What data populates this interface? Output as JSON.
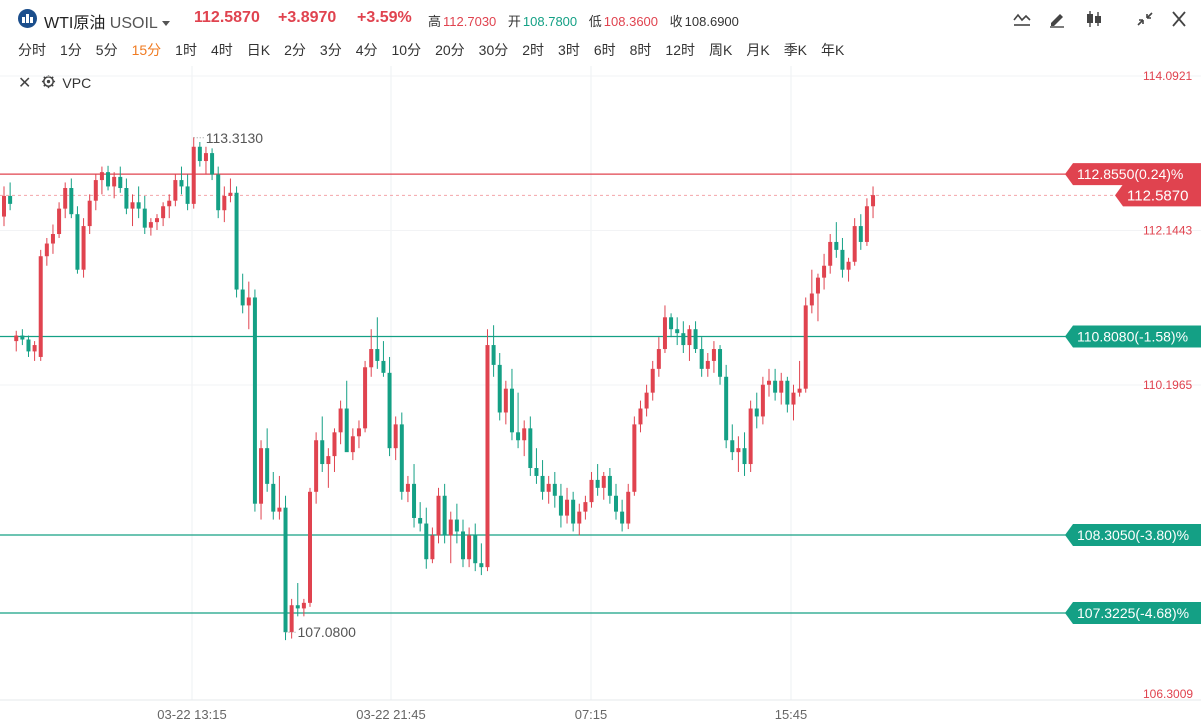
{
  "header": {
    "name": "WTI原油",
    "symbol": "USOIL",
    "price": "112.5870",
    "change": "+3.8970",
    "change_pct": "+3.59%",
    "high_label": "高",
    "high": "112.7030",
    "open_label": "开",
    "open": "108.7800",
    "low_label": "低",
    "low": "108.3600",
    "close_label": "收",
    "close": "108.6900"
  },
  "toolbar": {
    "icons": [
      "line-style-icon",
      "draw-pen-icon",
      "candle-type-icon",
      "collapse-icon",
      "close-icon"
    ]
  },
  "periods": [
    "分时",
    "1分",
    "5分",
    "15分",
    "1时",
    "4时",
    "日K",
    "2分",
    "3分",
    "4分",
    "10分",
    "20分",
    "30分",
    "2时",
    "3时",
    "6时",
    "8时",
    "12时",
    "周K",
    "月K",
    "季K",
    "年K"
  ],
  "active_period": "15分",
  "indicator": {
    "label": "VPC"
  },
  "colors": {
    "up": "#e0434f",
    "down": "#14a085",
    "accent": "#f07b22"
  },
  "chart_data": {
    "type": "candlestick",
    "y_axis_labels": [
      "114.0921",
      "112.1443",
      "110.1965",
      "106.3009"
    ],
    "ylim": [
      106.3009,
      114.0921
    ],
    "x_tick_labels": [
      "03-22 13:15",
      "03-22 21:45",
      "07:15",
      "15:45"
    ],
    "price_lines": [
      {
        "value": 112.855,
        "label": "112.8550(0.24)%",
        "color": "#e0434f"
      },
      {
        "value": 112.587,
        "label": "112.5870",
        "color": "#e0434f",
        "dashed": true
      },
      {
        "value": 110.808,
        "label": "110.8080(-1.58)%",
        "color": "#14a085"
      },
      {
        "value": 108.305,
        "label": "108.3050(-3.80)%",
        "color": "#14a085"
      },
      {
        "value": 107.3225,
        "label": "107.3225(-4.68)%",
        "color": "#14a085"
      }
    ],
    "annotations": [
      {
        "label": "113.3130",
        "value": 113.313
      },
      {
        "label": "107.0800",
        "value": 107.08
      }
    ],
    "candles_ohlc": [
      [
        112.32,
        112.7,
        112.2,
        112.58
      ],
      [
        112.58,
        112.75,
        112.4,
        112.48
      ],
      [
        110.75,
        110.88,
        110.62,
        110.82
      ],
      [
        110.82,
        110.9,
        110.7,
        110.77
      ],
      [
        110.77,
        110.82,
        110.55,
        110.62
      ],
      [
        110.62,
        110.75,
        110.5,
        110.7
      ],
      [
        110.55,
        111.9,
        110.5,
        111.82
      ],
      [
        111.82,
        112.05,
        111.7,
        111.98
      ],
      [
        111.98,
        112.22,
        111.85,
        112.1
      ],
      [
        112.1,
        112.5,
        112.05,
        112.42
      ],
      [
        112.42,
        112.75,
        112.3,
        112.68
      ],
      [
        112.68,
        112.8,
        112.3,
        112.35
      ],
      [
        112.35,
        112.45,
        111.6,
        111.65
      ],
      [
        111.65,
        112.3,
        111.55,
        112.2
      ],
      [
        112.2,
        112.6,
        112.1,
        112.52
      ],
      [
        112.52,
        112.85,
        112.4,
        112.78
      ],
      [
        112.78,
        112.95,
        112.6,
        112.88
      ],
      [
        112.88,
        112.96,
        112.65,
        112.7
      ],
      [
        112.7,
        112.88,
        112.55,
        112.82
      ],
      [
        112.82,
        112.95,
        112.62,
        112.68
      ],
      [
        112.68,
        112.8,
        112.35,
        112.42
      ],
      [
        112.42,
        112.6,
        112.2,
        112.5
      ],
      [
        112.5,
        112.7,
        112.3,
        112.42
      ],
      [
        112.42,
        112.58,
        112.1,
        112.18
      ],
      [
        112.18,
        112.3,
        112.08,
        112.25
      ],
      [
        112.25,
        112.35,
        112.15,
        112.3
      ],
      [
        112.3,
        112.5,
        112.2,
        112.45
      ],
      [
        112.45,
        112.6,
        112.3,
        112.52
      ],
      [
        112.52,
        112.85,
        112.45,
        112.78
      ],
      [
        112.78,
        112.95,
        112.6,
        112.7
      ],
      [
        112.7,
        112.85,
        112.4,
        112.48
      ],
      [
        112.48,
        113.32,
        112.42,
        113.2
      ],
      [
        113.2,
        113.26,
        112.95,
        113.02
      ],
      [
        113.02,
        113.2,
        112.85,
        113.12
      ],
      [
        113.12,
        113.18,
        112.78,
        112.85
      ],
      [
        112.85,
        112.95,
        112.3,
        112.4
      ],
      [
        112.4,
        112.7,
        112.25,
        112.58
      ],
      [
        112.58,
        112.8,
        112.5,
        112.62
      ],
      [
        112.62,
        112.7,
        111.3,
        111.4
      ],
      [
        111.4,
        111.6,
        111.1,
        111.2
      ],
      [
        111.2,
        111.5,
        110.9,
        111.3
      ],
      [
        111.3,
        111.4,
        108.6,
        108.7
      ],
      [
        108.7,
        109.5,
        108.5,
        109.4
      ],
      [
        109.4,
        109.65,
        108.85,
        108.95
      ],
      [
        108.95,
        109.1,
        108.5,
        108.6
      ],
      [
        108.6,
        109.05,
        108.5,
        108.65
      ],
      [
        108.65,
        108.8,
        106.98,
        107.08
      ],
      [
        107.08,
        107.5,
        107.0,
        107.42
      ],
      [
        107.42,
        107.7,
        107.28,
        107.38
      ],
      [
        107.38,
        107.5,
        107.28,
        107.45
      ],
      [
        107.45,
        108.9,
        107.4,
        108.85
      ],
      [
        108.85,
        109.6,
        108.7,
        109.5
      ],
      [
        109.5,
        109.8,
        109.1,
        109.2
      ],
      [
        109.2,
        109.4,
        108.9,
        109.3
      ],
      [
        109.3,
        109.65,
        109.1,
        109.6
      ],
      [
        109.6,
        110.0,
        109.45,
        109.9
      ],
      [
        109.9,
        110.25,
        109.7,
        109.35
      ],
      [
        109.35,
        109.65,
        109.25,
        109.55
      ],
      [
        109.55,
        109.75,
        109.4,
        109.65
      ],
      [
        109.65,
        110.5,
        109.6,
        110.42
      ],
      [
        110.42,
        110.9,
        110.3,
        110.65
      ],
      [
        110.65,
        111.05,
        110.4,
        110.5
      ],
      [
        110.5,
        110.75,
        110.3,
        110.35
      ],
      [
        110.35,
        110.55,
        109.3,
        109.4
      ],
      [
        109.4,
        109.8,
        109.25,
        109.7
      ],
      [
        109.7,
        109.85,
        108.75,
        108.85
      ],
      [
        108.85,
        109.05,
        108.72,
        108.95
      ],
      [
        108.95,
        109.2,
        108.4,
        108.52
      ],
      [
        108.52,
        108.72,
        108.35,
        108.45
      ],
      [
        108.45,
        108.65,
        107.88,
        108.0
      ],
      [
        108.0,
        108.4,
        107.95,
        108.3
      ],
      [
        108.3,
        108.9,
        108.2,
        108.8
      ],
      [
        108.8,
        108.95,
        108.2,
        108.3
      ],
      [
        108.3,
        108.6,
        107.95,
        108.5
      ],
      [
        108.5,
        108.7,
        108.2,
        108.35
      ],
      [
        108.35,
        108.5,
        107.9,
        108.0
      ],
      [
        108.0,
        108.4,
        107.9,
        108.3
      ],
      [
        108.3,
        108.45,
        107.85,
        107.95
      ],
      [
        107.95,
        108.2,
        107.8,
        107.9
      ],
      [
        107.9,
        110.9,
        107.85,
        110.7
      ],
      [
        110.7,
        110.95,
        110.3,
        110.45
      ],
      [
        110.45,
        110.6,
        109.75,
        109.85
      ],
      [
        109.85,
        110.25,
        109.7,
        110.15
      ],
      [
        110.15,
        110.4,
        109.5,
        109.6
      ],
      [
        109.6,
        110.1,
        109.4,
        109.5
      ],
      [
        109.5,
        109.75,
        109.3,
        109.65
      ],
      [
        109.65,
        109.8,
        109.05,
        109.15
      ],
      [
        109.15,
        109.4,
        108.95,
        109.05
      ],
      [
        109.05,
        109.25,
        108.75,
        108.85
      ],
      [
        108.85,
        109.05,
        108.7,
        108.95
      ],
      [
        108.95,
        109.1,
        108.65,
        108.8
      ],
      [
        108.8,
        108.95,
        108.4,
        108.55
      ],
      [
        108.55,
        108.9,
        108.45,
        108.75
      ],
      [
        108.75,
        108.85,
        108.35,
        108.45
      ],
      [
        108.45,
        108.7,
        108.3,
        108.6
      ],
      [
        108.6,
        108.8,
        108.5,
        108.72
      ],
      [
        108.72,
        109.1,
        108.65,
        109.0
      ],
      [
        109.0,
        109.2,
        108.8,
        108.9
      ],
      [
        108.9,
        109.1,
        108.75,
        109.05
      ],
      [
        109.05,
        109.15,
        108.7,
        108.8
      ],
      [
        108.8,
        108.95,
        108.5,
        108.6
      ],
      [
        108.6,
        108.75,
        108.35,
        108.45
      ],
      [
        108.45,
        108.95,
        108.38,
        108.85
      ],
      [
        108.85,
        109.8,
        108.8,
        109.7
      ],
      [
        109.7,
        110.0,
        109.6,
        109.9
      ],
      [
        109.9,
        110.2,
        109.8,
        110.1
      ],
      [
        110.1,
        110.5,
        110.0,
        110.4
      ],
      [
        110.4,
        110.8,
        110.3,
        110.65
      ],
      [
        110.65,
        111.2,
        110.6,
        111.05
      ],
      [
        111.05,
        111.1,
        110.8,
        110.9
      ],
      [
        110.9,
        111.05,
        110.7,
        110.85
      ],
      [
        110.85,
        111.0,
        110.6,
        110.7
      ],
      [
        110.7,
        110.95,
        110.5,
        110.9
      ],
      [
        110.9,
        111.0,
        110.6,
        110.65
      ],
      [
        110.65,
        110.8,
        110.3,
        110.4
      ],
      [
        110.4,
        110.6,
        110.3,
        110.5
      ],
      [
        110.5,
        110.75,
        110.35,
        110.65
      ],
      [
        110.65,
        110.7,
        110.2,
        110.3
      ],
      [
        110.3,
        110.45,
        109.4,
        109.5
      ],
      [
        109.5,
        109.7,
        109.25,
        109.35
      ],
      [
        109.35,
        109.55,
        109.1,
        109.4
      ],
      [
        109.4,
        109.6,
        109.05,
        109.2
      ],
      [
        109.2,
        110.0,
        109.1,
        109.9
      ],
      [
        109.9,
        110.1,
        109.65,
        109.8
      ],
      [
        109.8,
        110.3,
        109.7,
        110.2
      ],
      [
        110.2,
        110.4,
        110.05,
        110.25
      ],
      [
        110.25,
        110.4,
        110.0,
        110.1
      ],
      [
        110.1,
        110.35,
        109.95,
        110.25
      ],
      [
        110.25,
        110.3,
        109.85,
        109.95
      ],
      [
        109.95,
        110.2,
        109.75,
        110.1
      ],
      [
        110.1,
        110.5,
        110.05,
        110.15
      ],
      [
        110.15,
        111.3,
        110.1,
        111.2
      ],
      [
        111.2,
        111.65,
        111.1,
        111.35
      ],
      [
        111.35,
        111.6,
        111.0,
        111.55
      ],
      [
        111.55,
        111.85,
        111.4,
        111.7
      ],
      [
        111.7,
        112.1,
        111.6,
        112.0
      ],
      [
        112.0,
        112.25,
        111.8,
        111.9
      ],
      [
        111.9,
        112.05,
        111.55,
        111.65
      ],
      [
        111.65,
        111.8,
        111.5,
        111.75
      ],
      [
        111.75,
        112.3,
        111.7,
        112.2
      ],
      [
        112.2,
        112.35,
        111.9,
        112.0
      ],
      [
        112.0,
        112.55,
        111.95,
        112.45
      ],
      [
        112.45,
        112.7,
        112.3,
        112.59
      ]
    ]
  }
}
